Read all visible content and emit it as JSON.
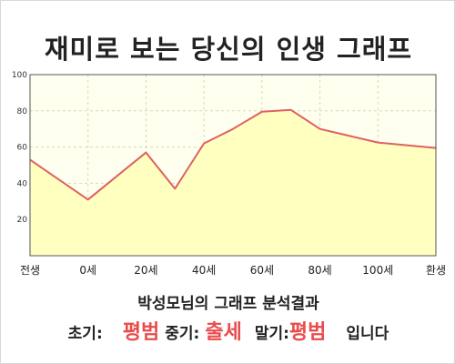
{
  "page": {
    "title": "재미로 보는 당신의 인생 그래프"
  },
  "chart_data": {
    "type": "area",
    "title": "재미로 보는 당신의 인생 그래프",
    "categories": [
      "전생",
      "0세",
      "20세",
      "40세",
      "60세",
      "80세",
      "100세",
      "환생"
    ],
    "points": [
      {
        "x": "전생",
        "y": 53
      },
      {
        "x": "0세",
        "y": 31
      },
      {
        "x": "20세",
        "y": 57
      },
      {
        "x": "30세",
        "y": 37
      },
      {
        "x": "40세",
        "y": 62
      },
      {
        "x": "50세",
        "y": 70
      },
      {
        "x": "60세",
        "y": 79.5
      },
      {
        "x": "70세",
        "y": 80.5
      },
      {
        "x": "80세",
        "y": 70
      },
      {
        "x": "100세",
        "y": 62.5
      },
      {
        "x": "환생",
        "y": 59.5
      }
    ],
    "ylim": [
      0,
      100
    ],
    "yticks": [
      20,
      40,
      60,
      80,
      100
    ],
    "grid": true,
    "colors": {
      "line": "#e06060",
      "fill": "#ffffc0",
      "plot_background": "#fffff0",
      "grid": "#d9d9b0",
      "axis": "#555555"
    }
  },
  "summary": {
    "text": "박성모님의 그래프 분석결과"
  },
  "result": {
    "early_label": "초기:",
    "early_value": "평범",
    "middle_label": "중기:",
    "middle_value": "출세",
    "late_label": "말기:",
    "late_value": "평범",
    "ending": "입니다",
    "highlight_color": "#e94c4c"
  }
}
